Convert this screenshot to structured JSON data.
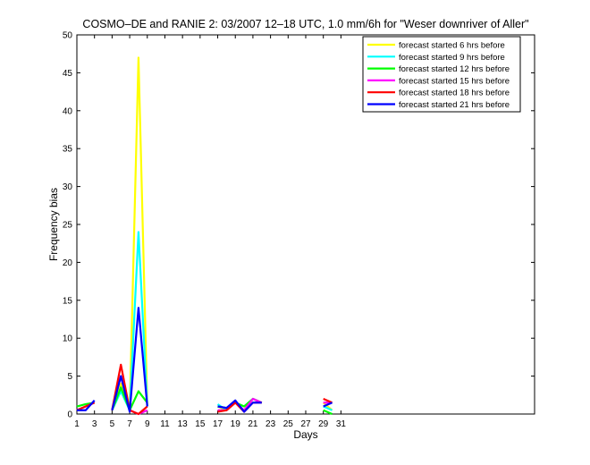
{
  "chart_data": {
    "type": "line",
    "title": "COSMO–DE and RANIE 2: 03/2007 12–18 UTC, 1.0 mm/6h for \"Weser downriver of Aller\"",
    "xlabel": "Days",
    "ylabel": "Frequency bias",
    "xlim": [
      1,
      53
    ],
    "ylim": [
      0,
      50
    ],
    "xticks": [
      1,
      3,
      5,
      7,
      9,
      11,
      13,
      15,
      17,
      19,
      21,
      23,
      25,
      27,
      29,
      31
    ],
    "yticks": [
      0,
      5,
      10,
      15,
      20,
      25,
      30,
      35,
      40,
      45,
      50
    ],
    "grid": false,
    "legend_position": "top-right",
    "series": [
      {
        "name": "forecast started 6 hrs before",
        "color": "#ffff00",
        "values": [
          0.5,
          1.0,
          1.5,
          null,
          0.5,
          4.0,
          0.5,
          47.0,
          1.0,
          null,
          null,
          null,
          null,
          null,
          null,
          null,
          1.0,
          0.5,
          1.5,
          0.5,
          2.0,
          1.5,
          null,
          null,
          null,
          null,
          null,
          null,
          1.5,
          0.5,
          null
        ]
      },
      {
        "name": "forecast started 9 hrs before",
        "color": "#00ffff",
        "values": [
          0.5,
          1.0,
          1.5,
          null,
          0.5,
          3.0,
          0.5,
          24.0,
          1.0,
          null,
          null,
          null,
          null,
          null,
          null,
          null,
          1.3,
          0.5,
          1.5,
          1.0,
          2.0,
          1.5,
          null,
          null,
          null,
          null,
          null,
          null,
          1.0,
          0.5,
          null
        ]
      },
      {
        "name": "forecast started 12 hrs before",
        "color": "#00ff00",
        "values": [
          1.0,
          1.3,
          1.5,
          null,
          0.5,
          3.5,
          0.5,
          3.0,
          1.5,
          null,
          null,
          null,
          null,
          null,
          null,
          null,
          1.0,
          0.8,
          1.5,
          1.0,
          2.0,
          1.5,
          null,
          null,
          null,
          null,
          null,
          null,
          0.5,
          0.0,
          null
        ]
      },
      {
        "name": "forecast started 15 hrs before",
        "color": "#ff00ff",
        "values": [
          0.5,
          1.0,
          1.5,
          null,
          0.5,
          5.0,
          0.5,
          0.0,
          0.5,
          null,
          null,
          null,
          null,
          null,
          null,
          null,
          0.5,
          0.5,
          1.5,
          0.5,
          2.0,
          1.5,
          null,
          null,
          null,
          null,
          null,
          null,
          1.5,
          1.5,
          null
        ]
      },
      {
        "name": "forecast started 18 hrs before",
        "color": "#ff0000",
        "values": [
          0.5,
          1.0,
          1.5,
          null,
          0.5,
          6.5,
          0.5,
          0.0,
          1.0,
          null,
          null,
          null,
          null,
          null,
          null,
          null,
          0.3,
          0.5,
          1.5,
          0.3,
          1.5,
          1.5,
          null,
          null,
          null,
          null,
          null,
          null,
          2.0,
          1.5,
          null
        ]
      },
      {
        "name": "forecast started 21 hrs before",
        "color": "#0000ff",
        "values": [
          0.5,
          0.5,
          1.8,
          null,
          0.5,
          5.0,
          0.3,
          14.0,
          1.0,
          null,
          null,
          null,
          null,
          null,
          null,
          null,
          1.0,
          0.8,
          1.8,
          0.3,
          1.5,
          1.5,
          null,
          null,
          null,
          null,
          null,
          null,
          1.0,
          1.5,
          null
        ]
      }
    ]
  }
}
